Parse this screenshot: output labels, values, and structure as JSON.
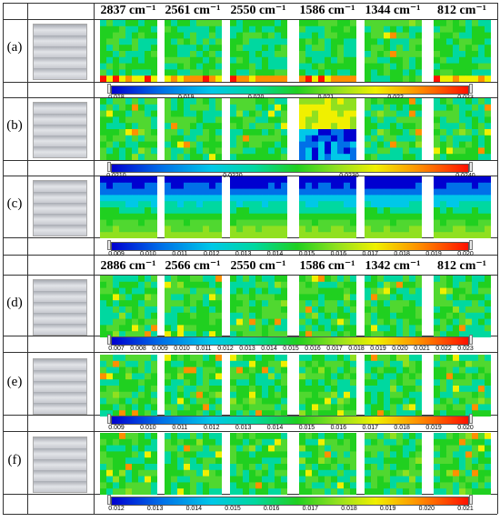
{
  "headers_top": [
    "2837 cm⁻¹",
    "2561 cm⁻¹",
    "2550 cm⁻¹",
    "1586 cm⁻¹",
    "1344 cm⁻¹",
    "812 cm⁻¹"
  ],
  "headers_bottom": [
    "2886 cm⁻¹",
    "2566 cm⁻¹",
    "2550 cm⁻¹",
    "1586 cm⁻¹",
    "1342 cm⁻¹",
    "812 cm⁻¹"
  ],
  "rows": [
    {
      "label": "(a)",
      "ticks": [
        "0.018",
        "0.019",
        "0.020",
        "0.021",
        "0.022",
        "0.023"
      ],
      "maps": [
        "low",
        "low",
        "low",
        "low",
        "mid",
        "low"
      ]
    },
    {
      "label": "(b)",
      "ticks": [
        "0.0210",
        "0.0220",
        "0.0230",
        "0.0240"
      ],
      "maps": [
        "mid",
        "mid",
        "mid",
        "high",
        "mid",
        "mid"
      ]
    },
    {
      "label": "(c)",
      "ticks": [
        "0.009",
        "0.010",
        "0.011",
        "0.012",
        "0.013",
        "0.014",
        "0.015",
        "0.016",
        "0.017",
        "0.018",
        "0.019",
        "0.020"
      ],
      "maps": [
        "grad",
        "grad",
        "grad",
        "grad",
        "grad",
        "grad"
      ]
    },
    {
      "label": "(d)",
      "ticks": [
        "0.007",
        "0.008",
        "0.009",
        "0.010",
        "0.011",
        "0.012",
        "0.013",
        "0.014",
        "0.015",
        "0.016",
        "0.017",
        "0.018",
        "0.019",
        "0.020",
        "0.021",
        "0.022",
        "0.023"
      ],
      "maps": [
        "mid",
        "mid",
        "mid",
        "mid",
        "mid",
        "mid"
      ]
    },
    {
      "label": "(e)",
      "ticks": [
        "0.009",
        "0.010",
        "0.011",
        "0.012",
        "0.013",
        "0.014",
        "0.015",
        "0.016",
        "0.017",
        "0.018",
        "0.019",
        "0.020"
      ],
      "maps": [
        "mid",
        "mid",
        "mid",
        "mid",
        "mid",
        "mid"
      ]
    },
    {
      "label": "(f)",
      "ticks": [
        "0.012",
        "0.013",
        "0.014",
        "0.015",
        "0.016",
        "0.017",
        "0.018",
        "0.019",
        "0.020",
        "0.021"
      ],
      "maps": [
        "mid",
        "mid",
        "mid",
        "mid",
        "mid",
        "mid"
      ]
    }
  ],
  "colors": {
    "line": "#333333",
    "low": "#0000d0",
    "high": "#ff1000"
  }
}
